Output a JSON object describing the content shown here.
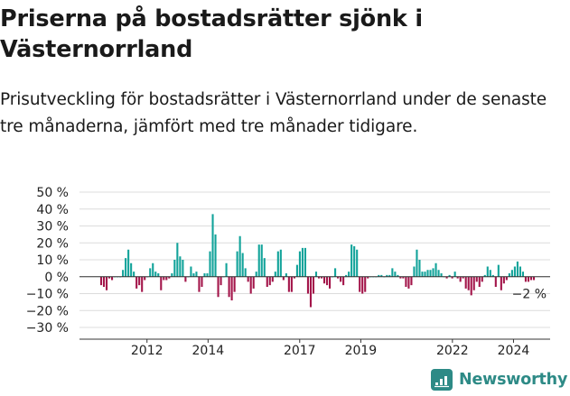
{
  "header": {
    "title": "Priserna på bostadsrätter sjönk i Västernorrland",
    "subtitle": "Prisutveckling för bostadsrätter i Västernorrland under de senaste tre månaderna, jämfört med tre månader tidigare."
  },
  "brand": {
    "name": "Newsworthy",
    "icon": "newsworthy-logo-icon",
    "color": "#2d8a86"
  },
  "colors": {
    "positive": "#12a39a",
    "negative": "#a3154a",
    "grid": "#dcdcdc",
    "axis": "#333333"
  },
  "chart_data": {
    "type": "bar",
    "title": "Priserna på bostadsrätter sjönk i Västernorrland",
    "x_start": "2011-01",
    "x_end": "2025-03",
    "xlabel": "",
    "ylabel": "",
    "unit": "%",
    "ylim": [
      -30,
      50
    ],
    "yticks": [
      50,
      40,
      30,
      20,
      10,
      0,
      -10,
      -20,
      -30
    ],
    "ytick_labels": [
      "50 %",
      "40 %",
      "30 %",
      "20 %",
      "10 %",
      "0 %",
      "−10 %",
      "−20 %",
      "−30 %"
    ],
    "xticks": [
      "2012",
      "2014",
      "2017",
      "2019",
      "2022",
      "2024"
    ],
    "grid": true,
    "last_value_label": "−2 %",
    "series": [
      {
        "values": [
          -5,
          -6,
          -8,
          -1,
          -2,
          0,
          0,
          0,
          4,
          11,
          16,
          8,
          3,
          -7,
          -5,
          -9,
          -2,
          0,
          5,
          8,
          3,
          2,
          -8,
          -2,
          -2,
          -1,
          2,
          10,
          20,
          12,
          10,
          -3,
          0,
          6,
          2,
          3,
          -9,
          -6,
          2,
          2,
          15,
          37,
          25,
          -12,
          -5,
          0,
          8,
          -12,
          -14,
          -9,
          15,
          24,
          14,
          5,
          -3,
          -10,
          -7,
          3,
          19,
          19,
          11,
          -6,
          -5,
          -3,
          3,
          15,
          16,
          -2,
          2,
          -9,
          -9,
          -1,
          7,
          15,
          17,
          17,
          -10,
          -18,
          -10,
          3,
          -1,
          -1,
          -4,
          -5,
          -7,
          0,
          5,
          -1,
          -3,
          -5,
          1,
          3,
          19,
          18,
          16,
          -9,
          -10,
          -9,
          -1,
          0,
          0,
          0,
          1,
          1,
          0,
          1,
          1,
          5,
          3,
          1,
          -1,
          -1,
          -6,
          -7,
          -5,
          6,
          16,
          10,
          3,
          3,
          4,
          4,
          5,
          8,
          4,
          2,
          0,
          -1,
          1,
          -1,
          3,
          -1,
          -3,
          -1,
          -7,
          -8,
          -11,
          -8,
          -3,
          -6,
          -3,
          1,
          6,
          4,
          1,
          -6,
          7,
          -8,
          -4,
          -2,
          2,
          4,
          6,
          9,
          6,
          3,
          -3,
          -3,
          -2,
          -2
        ]
      }
    ]
  }
}
